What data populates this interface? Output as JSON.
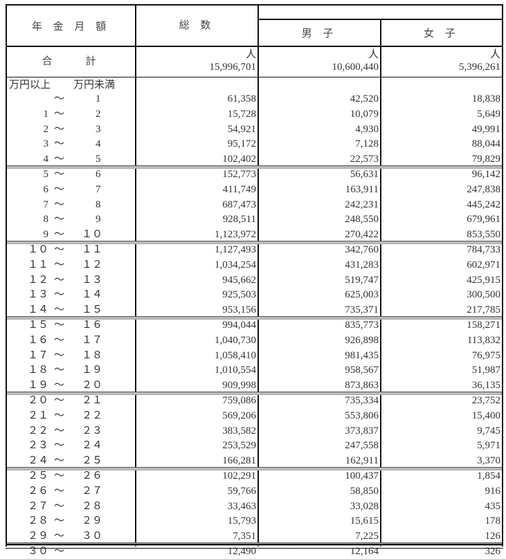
{
  "header": {
    "col_amount": "年 金 月 額",
    "col_total": "総 数",
    "col_male": "男 子",
    "col_female": "女 子"
  },
  "total_row": {
    "label": "合　　計",
    "unit": "人",
    "total": "15,996,701",
    "male": "10,600,440",
    "female": "5,396,261"
  },
  "range_header": {
    "lower": "万円以上",
    "upper": "万円未満"
  },
  "tilde": "～",
  "rows": [
    {
      "lo": "",
      "hi": "1",
      "total": "61,358",
      "male": "42,520",
      "female": "18,838"
    },
    {
      "lo": "1",
      "hi": "2",
      "total": "15,728",
      "male": "10,079",
      "female": "5,649"
    },
    {
      "lo": "2",
      "hi": "3",
      "total": "54,921",
      "male": "4,930",
      "female": "49,991"
    },
    {
      "lo": "3",
      "hi": "4",
      "total": "95,172",
      "male": "7,128",
      "female": "88,044"
    },
    {
      "lo": "4",
      "hi": "5",
      "total": "102,402",
      "male": "22,573",
      "female": "79,829"
    },
    {
      "lo": "5",
      "hi": "6",
      "total": "152,773",
      "male": "56,631",
      "female": "96,142"
    },
    {
      "lo": "6",
      "hi": "7",
      "total": "411,749",
      "male": "163,911",
      "female": "247,838"
    },
    {
      "lo": "7",
      "hi": "8",
      "total": "687,473",
      "male": "242,231",
      "female": "445,242"
    },
    {
      "lo": "8",
      "hi": "9",
      "total": "928,511",
      "male": "248,550",
      "female": "679,961"
    },
    {
      "lo": "9",
      "hi": "１０",
      "total": "1,123,972",
      "male": "270,422",
      "female": "853,550"
    },
    {
      "lo": "１０",
      "hi": "１１",
      "total": "1,127,493",
      "male": "342,760",
      "female": "784,733"
    },
    {
      "lo": "１１",
      "hi": "１２",
      "total": "1,034,254",
      "male": "431,283",
      "female": "602,971"
    },
    {
      "lo": "１２",
      "hi": "１３",
      "total": "945,662",
      "male": "519,747",
      "female": "425,915"
    },
    {
      "lo": "１３",
      "hi": "１４",
      "total": "925,503",
      "male": "625,003",
      "female": "300,500"
    },
    {
      "lo": "１４",
      "hi": "１５",
      "total": "953,156",
      "male": "735,371",
      "female": "217,785"
    },
    {
      "lo": "１５",
      "hi": "１６",
      "total": "994,044",
      "male": "835,773",
      "female": "158,271"
    },
    {
      "lo": "１６",
      "hi": "１７",
      "total": "1,040,730",
      "male": "926,898",
      "female": "113,832"
    },
    {
      "lo": "１７",
      "hi": "１８",
      "total": "1,058,410",
      "male": "981,435",
      "female": "76,975"
    },
    {
      "lo": "１８",
      "hi": "１９",
      "total": "1,010,554",
      "male": "958,567",
      "female": "51,987"
    },
    {
      "lo": "１９",
      "hi": "２０",
      "total": "909,998",
      "male": "873,863",
      "female": "36,135"
    },
    {
      "lo": "２０",
      "hi": "２１",
      "total": "759,086",
      "male": "735,334",
      "female": "23,752"
    },
    {
      "lo": "２１",
      "hi": "２２",
      "total": "569,206",
      "male": "553,806",
      "female": "15,400"
    },
    {
      "lo": "２２",
      "hi": "２３",
      "total": "383,582",
      "male": "373,837",
      "female": "9,745"
    },
    {
      "lo": "２３",
      "hi": "２４",
      "total": "253,529",
      "male": "247,558",
      "female": "5,971"
    },
    {
      "lo": "２４",
      "hi": "２５",
      "total": "166,281",
      "male": "162,911",
      "female": "3,370"
    },
    {
      "lo": "２５",
      "hi": "２６",
      "total": "102,291",
      "male": "100,437",
      "female": "1,854"
    },
    {
      "lo": "２６",
      "hi": "２７",
      "total": "59,766",
      "male": "58,850",
      "female": "916"
    },
    {
      "lo": "２７",
      "hi": "２８",
      "total": "33,463",
      "male": "33,028",
      "female": "435"
    },
    {
      "lo": "２８",
      "hi": "２９",
      "total": "15,793",
      "male": "15,615",
      "female": "178"
    },
    {
      "lo": "２９",
      "hi": "３０",
      "total": "7,351",
      "male": "7,225",
      "female": "126"
    },
    {
      "lo": "３０",
      "hi": "",
      "total": "12,490",
      "male": "12,164",
      "female": "326"
    }
  ]
}
